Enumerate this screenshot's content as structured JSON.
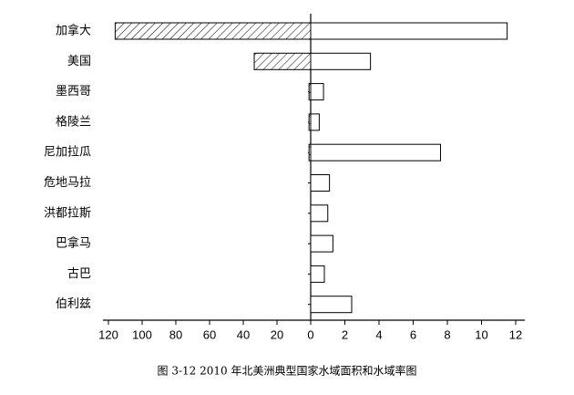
{
  "chart_data": {
    "type": "bar",
    "orientation": "horizontal",
    "title": "图 3-12 2010 年北美洲典型国家水域面积和水域率图",
    "categories": [
      "加拿大",
      "美国",
      "墨西哥",
      "格陵兰",
      "尼加拉瓜",
      "危地马拉",
      "洪都拉斯",
      "巴拿马",
      "古巴",
      "伯利兹"
    ],
    "series": [
      {
        "axis": "x",
        "color": "#000000",
        "hatch": true,
        "values": [
          116,
          33.5,
          1,
          1,
          1,
          0,
          0,
          0,
          0,
          0
        ]
      },
      {
        "axis": "x2",
        "color": "#000000",
        "hatch": false,
        "values": [
          11.5,
          3.5,
          0.75,
          0.5,
          7.6,
          1.1,
          1,
          1.3,
          0.8,
          2.4
        ]
      }
    ],
    "xlim": [
      120,
      0
    ],
    "xticks": [
      120,
      100,
      80,
      60,
      40,
      20
    ],
    "x2lim": [
      0,
      12
    ],
    "x2ticks": [
      0,
      2,
      4,
      6,
      8,
      10,
      12
    ]
  }
}
